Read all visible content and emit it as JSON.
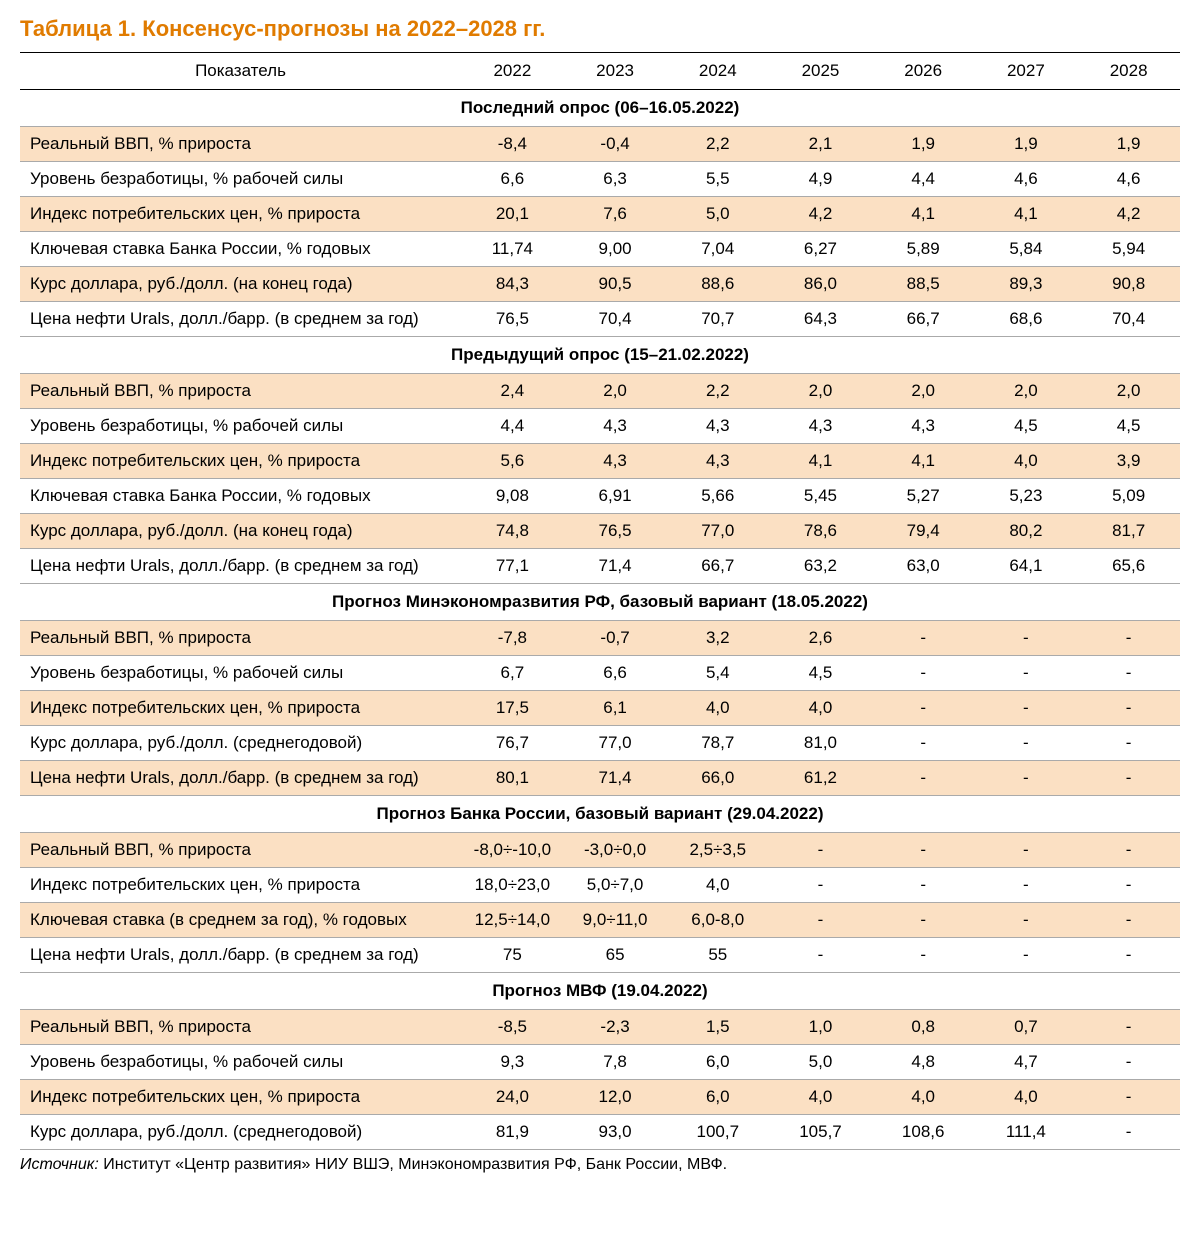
{
  "title": "Таблица 1. Консенсус-прогнозы на 2022–2028 гг.",
  "columns": [
    "Показатель",
    "2022",
    "2023",
    "2024",
    "2025",
    "2026",
    "2027",
    "2028"
  ],
  "colors": {
    "title": "#e07b00",
    "shaded_row": "#fbe0c3",
    "border": "#aaaaaa",
    "header_border": "#000000"
  },
  "sections": [
    {
      "header": "Последний опрос (06–16.05.2022)",
      "rows": [
        {
          "shaded": true,
          "cells": [
            "Реальный ВВП, % прироста",
            "-8,4",
            "-0,4",
            "2,2",
            "2,1",
            "1,9",
            "1,9",
            "1,9"
          ]
        },
        {
          "shaded": false,
          "cells": [
            "Уровень безработицы, % рабочей силы",
            "6,6",
            "6,3",
            "5,5",
            "4,9",
            "4,4",
            "4,6",
            "4,6"
          ]
        },
        {
          "shaded": true,
          "cells": [
            "Индекс потребительских цен, % прироста",
            "20,1",
            "7,6",
            "5,0",
            "4,2",
            "4,1",
            "4,1",
            "4,2"
          ]
        },
        {
          "shaded": false,
          "cells": [
            "Ключевая ставка Банка России, % годовых",
            "11,74",
            "9,00",
            "7,04",
            "6,27",
            "5,89",
            "5,84",
            "5,94"
          ]
        },
        {
          "shaded": true,
          "cells": [
            "Курс доллара, руб./долл. (на конец года)",
            "84,3",
            "90,5",
            "88,6",
            "86,0",
            "88,5",
            "89,3",
            "90,8"
          ]
        },
        {
          "shaded": false,
          "cells": [
            "Цена нефти Urals, долл./барр. (в среднем за год)",
            "76,5",
            "70,4",
            "70,7",
            "64,3",
            "66,7",
            "68,6",
            "70,4"
          ]
        }
      ]
    },
    {
      "header": "Предыдущий опрос (15–21.02.2022)",
      "rows": [
        {
          "shaded": true,
          "cells": [
            "Реальный ВВП, % прироста",
            "2,4",
            "2,0",
            "2,2",
            "2,0",
            "2,0",
            "2,0",
            "2,0"
          ]
        },
        {
          "shaded": false,
          "cells": [
            "Уровень безработицы, % рабочей силы",
            "4,4",
            "4,3",
            "4,3",
            "4,3",
            "4,3",
            "4,5",
            "4,5"
          ]
        },
        {
          "shaded": true,
          "cells": [
            "Индекс потребительских цен, % прироста",
            "5,6",
            "4,3",
            "4,3",
            "4,1",
            "4,1",
            "4,0",
            "3,9"
          ]
        },
        {
          "shaded": false,
          "cells": [
            "Ключевая ставка Банка России, % годовых",
            "9,08",
            "6,91",
            "5,66",
            "5,45",
            "5,27",
            "5,23",
            "5,09"
          ]
        },
        {
          "shaded": true,
          "cells": [
            "Курс доллара, руб./долл. (на конец года)",
            "74,8",
            "76,5",
            "77,0",
            "78,6",
            "79,4",
            "80,2",
            "81,7"
          ]
        },
        {
          "shaded": false,
          "cells": [
            "Цена нефти Urals, долл./барр. (в среднем за год)",
            "77,1",
            "71,4",
            "66,7",
            "63,2",
            "63,0",
            "64,1",
            "65,6"
          ]
        }
      ]
    },
    {
      "header": "Прогноз Минэкономразвития РФ, базовый вариант (18.05.2022)",
      "rows": [
        {
          "shaded": true,
          "cells": [
            "Реальный ВВП, % прироста",
            "-7,8",
            "-0,7",
            "3,2",
            "2,6",
            "-",
            "-",
            "-"
          ]
        },
        {
          "shaded": false,
          "cells": [
            "Уровень безработицы, % рабочей силы",
            "6,7",
            "6,6",
            "5,4",
            "4,5",
            "-",
            "-",
            "-"
          ]
        },
        {
          "shaded": true,
          "cells": [
            "Индекс потребительских цен, % прироста",
            "17,5",
            "6,1",
            "4,0",
            "4,0",
            "-",
            "-",
            "-"
          ]
        },
        {
          "shaded": false,
          "cells": [
            "Курс доллара, руб./долл. (среднегодовой)",
            "76,7",
            "77,0",
            "78,7",
            "81,0",
            "-",
            "-",
            "-"
          ]
        },
        {
          "shaded": true,
          "cells": [
            "Цена нефти Urals, долл./барр. (в среднем за год)",
            "80,1",
            "71,4",
            "66,0",
            "61,2",
            "-",
            "-",
            "-"
          ]
        }
      ]
    },
    {
      "header": "Прогноз Банка России, базовый вариант (29.04.2022)",
      "rows": [
        {
          "shaded": true,
          "cells": [
            "Реальный ВВП, % прироста",
            "-8,0÷-10,0",
            "-3,0÷0,0",
            "2,5÷3,5",
            "-",
            "-",
            "-",
            "-"
          ]
        },
        {
          "shaded": false,
          "cells": [
            "Индекс потребительских цен, % прироста",
            "18,0÷23,0",
            "5,0÷7,0",
            "4,0",
            "-",
            "-",
            "-",
            "-"
          ]
        },
        {
          "shaded": true,
          "cells": [
            "Ключевая ставка (в среднем за год), % годовых",
            "12,5÷14,0",
            "9,0÷11,0",
            "6,0-8,0",
            "-",
            "-",
            "-",
            "-"
          ]
        },
        {
          "shaded": false,
          "cells": [
            "Цена нефти Urals, долл./барр. (в среднем за год)",
            "75",
            "65",
            "55",
            "-",
            "-",
            "-",
            "-"
          ]
        }
      ]
    },
    {
      "header": "Прогноз МВФ (19.04.2022)",
      "rows": [
        {
          "shaded": true,
          "cells": [
            "Реальный ВВП, % прироста",
            "-8,5",
            "-2,3",
            "1,5",
            "1,0",
            "0,8",
            "0,7",
            "-"
          ]
        },
        {
          "shaded": false,
          "cells": [
            "Уровень безработицы, % рабочей силы",
            "9,3",
            "7,8",
            "6,0",
            "5,0",
            "4,8",
            "4,7",
            "-"
          ]
        },
        {
          "shaded": true,
          "cells": [
            "Индекс потребительских цен, % прироста",
            "24,0",
            "12,0",
            "6,0",
            "4,0",
            "4,0",
            "4,0",
            "-"
          ]
        },
        {
          "shaded": false,
          "cells": [
            "Курс доллара, руб./долл. (среднегодовой)",
            "81,9",
            "93,0",
            "100,7",
            "105,7",
            "108,6",
            "111,4",
            "-"
          ]
        }
      ]
    }
  ],
  "source": {
    "label": "Источник:",
    "text": " Институт «Центр развития» НИУ ВШЭ, Минэкономразвития РФ, Банк России, МВФ."
  }
}
